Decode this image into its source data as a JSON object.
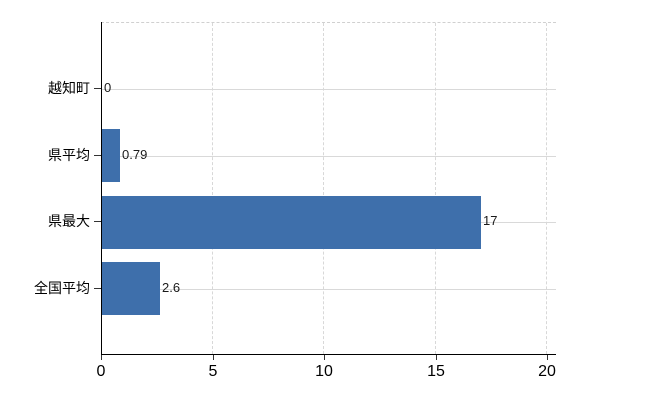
{
  "chart_data": {
    "type": "bar",
    "orientation": "horizontal",
    "title": "",
    "xlabel": "",
    "ylabel": "",
    "categories": [
      "越知町",
      "県平均",
      "県最大",
      "全国平均"
    ],
    "values": [
      0,
      0.79,
      17,
      2.6
    ],
    "value_labels": [
      "0",
      "0.79",
      "17",
      "2.6"
    ],
    "x_tick_labels": [
      "0",
      "5",
      "10",
      "15",
      "20"
    ],
    "x_tick_values": [
      0,
      5,
      10,
      15,
      20
    ],
    "xlim": [
      0,
      20.4
    ],
    "grid": true,
    "legend_position": "none",
    "colors": {
      "bar": "#3e6fab",
      "h_gridline": "#d9d9d9",
      "v_gridline": "#d8d8d8",
      "plot_top_border": "#d0d0d0",
      "axis": "#000000",
      "tick": "#333333",
      "label_text": "#000000",
      "background": "#ffffff"
    }
  }
}
